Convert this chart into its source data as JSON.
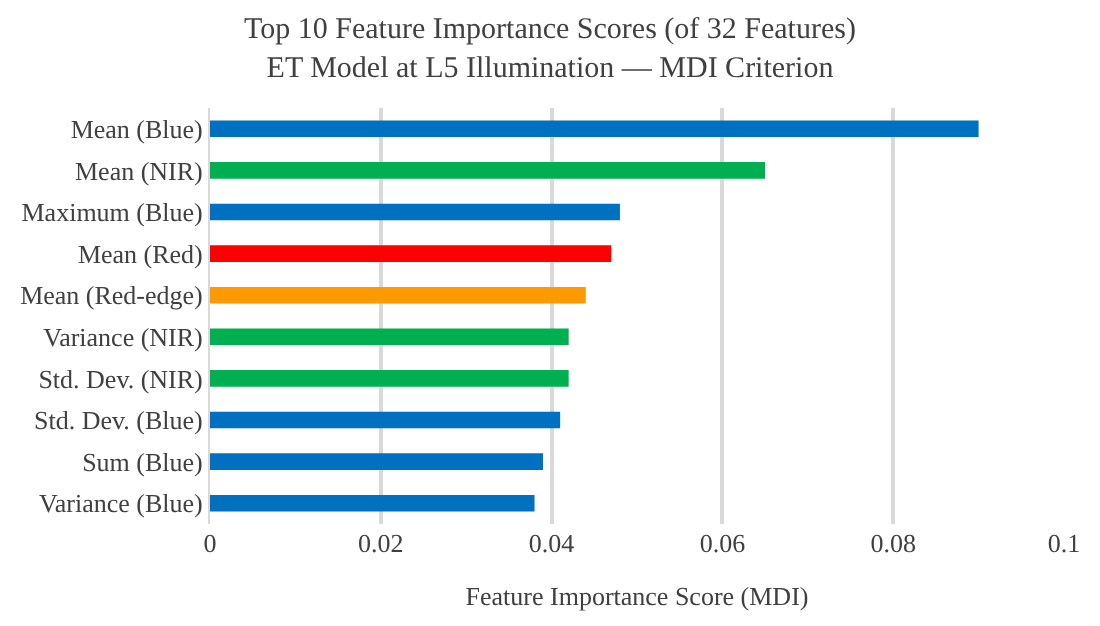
{
  "chart_data": {
    "type": "bar",
    "orientation": "horizontal",
    "title": "Top 10 Feature Importance Scores (of 32 Features)\nET Model at L5 Illumination — MDI Criterion",
    "xlabel": "Feature Importance Score (MDI)",
    "categories": [
      "Mean (Blue)",
      "Mean (NIR)",
      "Maximum (Blue)",
      "Mean (Red)",
      "Mean (Red-edge)",
      "Variance (NIR)",
      "Std. Dev. (NIR)",
      "Std. Dev. (Blue)",
      "Sum (Blue)",
      "Variance (Blue)"
    ],
    "values": [
      0.09,
      0.065,
      0.048,
      0.047,
      0.044,
      0.042,
      0.042,
      0.041,
      0.039,
      0.038
    ],
    "colors": [
      "#0070c0",
      "#00b050",
      "#0070c0",
      "#ff0000",
      "#ff9900",
      "#00b050",
      "#00b050",
      "#0070c0",
      "#0070c0",
      "#0070c0"
    ],
    "xlim": [
      0,
      0.1
    ],
    "xticks": [
      0,
      0.02,
      0.04,
      0.06,
      0.08,
      0.1
    ],
    "grid": "x",
    "legend": false
  }
}
